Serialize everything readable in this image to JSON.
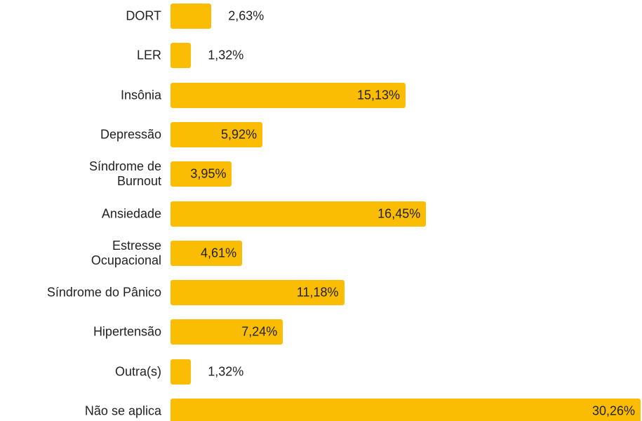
{
  "chart_data": {
    "type": "bar",
    "orientation": "horizontal",
    "color": "#fbbc04",
    "categories": [
      "DORT",
      "LER",
      "Insônia",
      "Depressão",
      "Síndrome de\nBurnout",
      "Ansiedade",
      "Estresse\nOcupacional",
      "Síndrome do Pânico",
      "Hipertensão",
      "Outra(s)",
      "Não se aplica"
    ],
    "values": [
      2.63,
      1.32,
      15.13,
      5.92,
      3.95,
      16.45,
      4.61,
      11.18,
      7.24,
      1.32,
      30.26
    ],
    "value_labels": [
      "2,63%",
      "1,32%",
      "15,13%",
      "5,92%",
      "3,95%",
      "16,45%",
      "4,61%",
      "11,18%",
      "7,24%",
      "1,32%",
      "30,26%"
    ]
  }
}
